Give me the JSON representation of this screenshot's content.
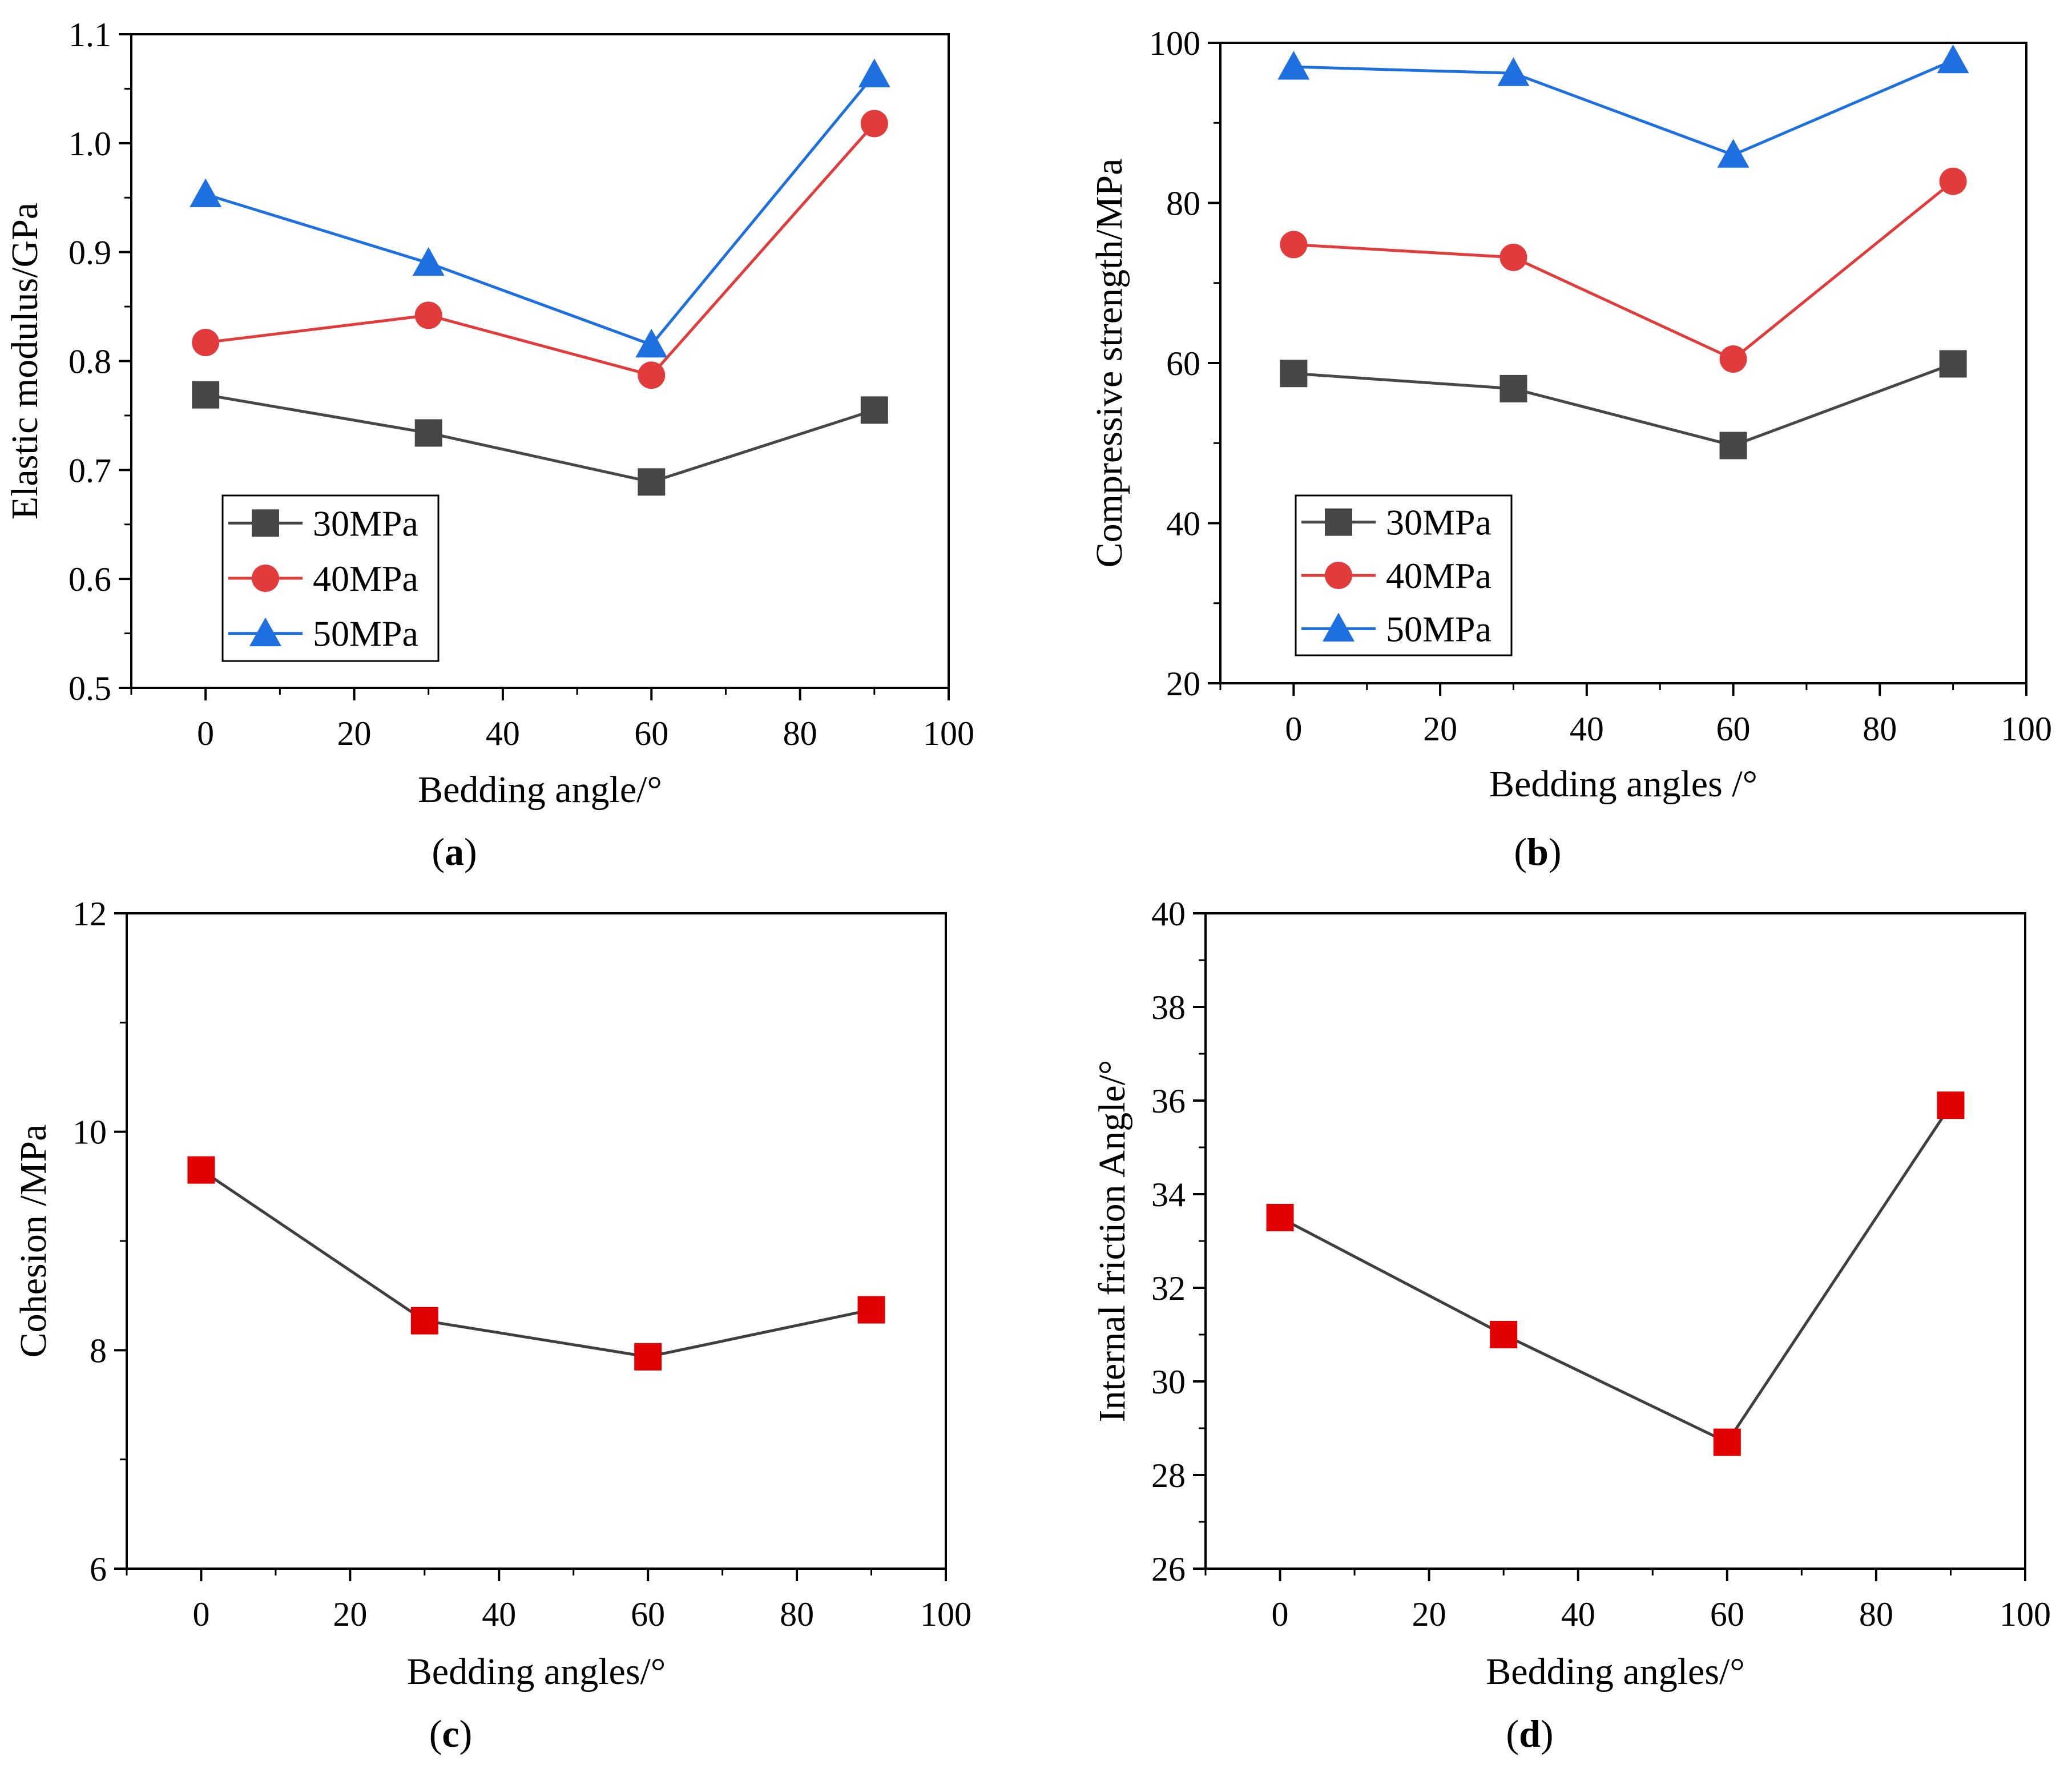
{
  "colors": {
    "series_30": "#474747",
    "series_40": "#e23b3b",
    "series_50": "#1e6fe0",
    "marker_red": "#e00000",
    "line_dark": "#3f3f3f"
  },
  "chart_data": [
    {
      "type": "line",
      "id": "a",
      "panel_letter": "a",
      "xlabel": "Bedding angle/°",
      "ylabel": "Elastic modulus/GPa",
      "x": [
        0,
        30,
        60,
        90
      ],
      "xlim": [
        -10,
        100
      ],
      "ylim": [
        0.5,
        1.1
      ],
      "xticks": [
        0,
        20,
        40,
        60,
        80,
        100
      ],
      "yticks": [
        0.5,
        0.6,
        0.7,
        0.8,
        0.9,
        1.0,
        1.1
      ],
      "ytick_labels": [
        "0.5",
        "0.6",
        "0.7",
        "0.8",
        "0.9",
        "1.0",
        "1.1"
      ],
      "legend": "lower-left",
      "series": [
        {
          "name": "30MPa",
          "marker": "square",
          "color_key": "series_30",
          "values": [
            0.769,
            0.734,
            0.689,
            0.755
          ]
        },
        {
          "name": "40MPa",
          "marker": "circle",
          "color_key": "series_40",
          "values": [
            0.817,
            0.842,
            0.787,
            1.018
          ]
        },
        {
          "name": "50MPa",
          "marker": "triangle",
          "color_key": "series_50",
          "values": [
            0.953,
            0.89,
            0.815,
            1.063
          ]
        }
      ]
    },
    {
      "type": "line",
      "id": "b",
      "panel_letter": "b",
      "xlabel": "Bedding angles /°",
      "ylabel": "Compressive strength/MPa",
      "x": [
        0,
        30,
        60,
        90
      ],
      "xlim": [
        -10,
        100
      ],
      "ylim": [
        20,
        100
      ],
      "xticks": [
        0,
        20,
        40,
        60,
        80,
        100
      ],
      "yticks": [
        20,
        40,
        60,
        80,
        100
      ],
      "ytick_labels": [
        "20",
        "40",
        "60",
        "80",
        "100"
      ],
      "legend": "lower-left",
      "series": [
        {
          "name": "30MPa",
          "marker": "square",
          "color_key": "series_30",
          "values": [
            58.7,
            56.8,
            49.7,
            59.9
          ]
        },
        {
          "name": "40MPa",
          "marker": "circle",
          "color_key": "series_40",
          "values": [
            74.8,
            73.2,
            60.5,
            82.7
          ]
        },
        {
          "name": "50MPa",
          "marker": "triangle",
          "color_key": "series_50",
          "values": [
            97.0,
            96.2,
            86.0,
            97.8
          ]
        }
      ]
    },
    {
      "type": "line",
      "id": "c",
      "panel_letter": "c",
      "xlabel": "Bedding angles/°",
      "ylabel": "Cohesion /MPa",
      "x": [
        0,
        30,
        60,
        90
      ],
      "xlim": [
        -10,
        100
      ],
      "ylim": [
        6,
        12
      ],
      "xticks": [
        0,
        20,
        40,
        60,
        80,
        100
      ],
      "yticks": [
        6,
        8,
        10,
        12
      ],
      "ytick_labels": [
        "6",
        "8",
        "10",
        "12"
      ],
      "legend": "none",
      "series": [
        {
          "name": "Cohesion",
          "marker": "square",
          "color_key": "line_dark",
          "marker_color_key": "marker_red",
          "values": [
            9.65,
            8.27,
            7.94,
            8.37
          ]
        }
      ]
    },
    {
      "type": "line",
      "id": "d",
      "panel_letter": "d",
      "xlabel": "Bedding angles/°",
      "ylabel": "Internal friction Angle/°",
      "x": [
        0,
        30,
        60,
        90
      ],
      "xlim": [
        -10,
        100
      ],
      "ylim": [
        26,
        40
      ],
      "xticks": [
        0,
        20,
        40,
        60,
        80,
        100
      ],
      "yticks": [
        26,
        28,
        30,
        32,
        34,
        36,
        38,
        40
      ],
      "ytick_labels": [
        "26",
        "28",
        "30",
        "32",
        "34",
        "36",
        "38",
        "40"
      ],
      "legend": "none",
      "series": [
        {
          "name": "Internal friction angle",
          "marker": "square",
          "color_key": "line_dark",
          "marker_color_key": "marker_red",
          "values": [
            33.5,
            31.0,
            28.7,
            35.9
          ]
        }
      ]
    }
  ]
}
